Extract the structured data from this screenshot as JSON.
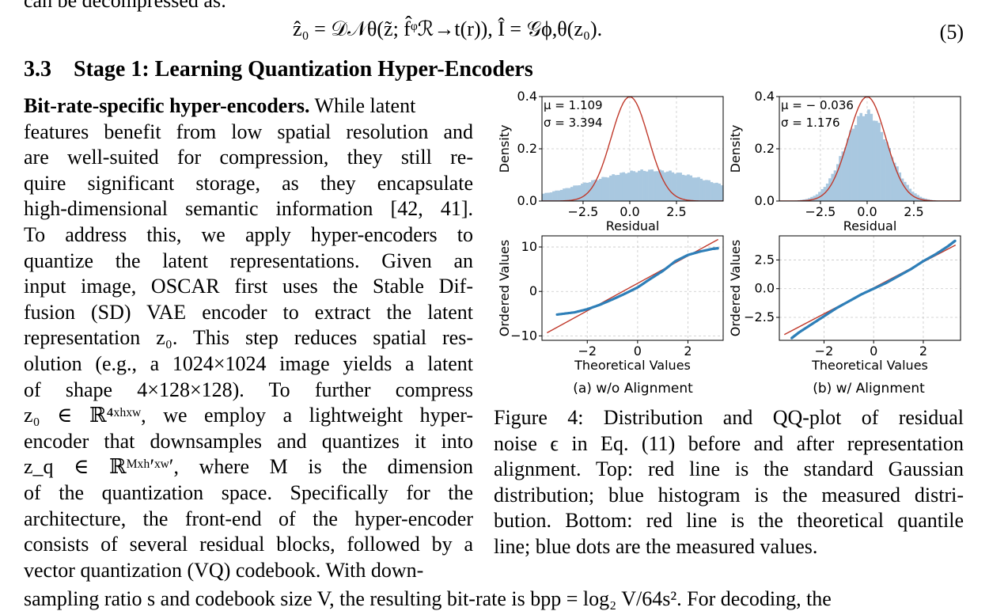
{
  "page": {
    "top_cut_text": "can be decompressed as:",
    "equation": "ẑ₀ = 𝒟𝒩θ(z̃; f̂ᵠℛ→t(r)),    Î = 𝒢ϕ,θ(z₀).",
    "equation_number": "(5)",
    "section_number": "3.3",
    "section_title": "Stage 1: Learning Quantization Hyper-Encoders",
    "para_lead": "Bit-rate-specific hyper-encoders.",
    "body_lines": [
      " While latent",
      "features benefit from low spatial resolution and",
      "are well-suited for compression, they still re-",
      "quire significant storage, as they encapsulate",
      "high-dimensional semantic information [42, 41].",
      "To address this, we apply hyper-encoders to",
      "quantize the latent representations.  Given an",
      "input image, OSCAR first uses the Stable Dif-",
      "fusion (SD) VAE encoder to extract the latent",
      "representation z₀. This step reduces spatial res-",
      "olution (e.g., a 1024×1024 image yields a latent",
      "of shape 4×128×128).  To further compress",
      "z₀ ∈ ℝ⁴ˣʰˣʷ, we employ a lightweight hyper-",
      "encoder that downsamples and quantizes it into",
      "z_q ∈ ℝᴹˣʰ′ˣʷ′, where M is the dimension",
      "of the quantization space. Specifically for the",
      "architecture, the front-end of the hyper-encoder",
      "consists of several residual blocks, followed by a",
      "vector quantization (VQ) codebook. With down-"
    ],
    "bottom_cut_text": "sampling ratio s and codebook size V, the resulting bit-rate is bpp = log₂ V/64s². For decoding, the",
    "caption_lines": [
      "Figure 4:  Distribution and QQ-plot of residual",
      "noise ϵ in Eq. (11) before and after representation",
      "alignment. Top: red line is the standard Gaussian",
      "distribution; blue histogram is the measured distri-",
      "bution. Bottom: red line is the theoretical quantile",
      "line; blue dots are the measured values."
    ]
  },
  "colors": {
    "hist_fill": "#a9c8e0",
    "gauss_line": "#c0392b",
    "qq_dots": "#2e7fb8",
    "grid": "#c8c8c8"
  },
  "chart_data": [
    {
      "type": "area",
      "panel": "a-top",
      "xlabel": "Residual",
      "ylabel": "Density",
      "xticks": [
        "−2.5",
        "0.0",
        "2.5"
      ],
      "yticks": [
        "0.0",
        "0.2",
        "0.4"
      ],
      "xlim": [
        -4.7,
        5.0
      ],
      "ylim": [
        0,
        0.4
      ],
      "annotation_mu": "μ = 1.109",
      "annotation_sigma": "σ = 3.394",
      "histogram": {
        "mu": 1.109,
        "sigma": 3.394
      },
      "reference": "standard Gaussian",
      "subcaption": "(a) w/o Alignment"
    },
    {
      "type": "area",
      "panel": "b-top",
      "xlabel": "Residual",
      "ylabel": "Density",
      "xticks": [
        "−2.5",
        "0.0",
        "2.5"
      ],
      "yticks": [
        "0.0",
        "0.2",
        "0.4"
      ],
      "xlim": [
        -4.7,
        5.0
      ],
      "ylim": [
        0,
        0.4
      ],
      "annotation_mu": "μ = − 0.036",
      "annotation_sigma": "σ = 1.176",
      "histogram": {
        "mu": -0.036,
        "sigma": 1.176
      },
      "reference": "standard Gaussian",
      "subcaption": "(b) w/ Alignment"
    },
    {
      "type": "scatter",
      "panel": "a-bottom",
      "xlabel": "Theoretical Values",
      "ylabel": "Ordered Values",
      "xticks": [
        "−2",
        "0",
        "2"
      ],
      "yticks": [
        "−10",
        "0",
        "10"
      ],
      "xlim": [
        -3.8,
        3.4
      ],
      "ylim": [
        -11,
        12.5
      ],
      "line": {
        "x": [
          -3.6,
          3.2
        ],
        "y": [
          -9.3,
          11.7
        ]
      },
      "points": {
        "x": [
          -3.2,
          -2.5,
          -2.0,
          -1.5,
          -1.0,
          -0.5,
          0.0,
          0.5,
          1.0,
          1.5,
          2.0,
          2.5,
          3.0,
          3.2
        ],
        "y": [
          -5.2,
          -4.7,
          -4.0,
          -3.0,
          -1.8,
          -0.5,
          0.9,
          2.8,
          4.6,
          6.8,
          8.2,
          9.0,
          9.6,
          9.7
        ]
      }
    },
    {
      "type": "scatter",
      "panel": "b-bottom",
      "xlabel": "Theoretical Values",
      "ylabel": "Ordered Values",
      "xticks": [
        "−2",
        "0",
        "2"
      ],
      "yticks": [
        "−2.5",
        "0.0",
        "2.5"
      ],
      "xlim": [
        -3.8,
        3.5
      ],
      "ylim": [
        -4.5,
        4.6
      ],
      "line": {
        "x": [
          -3.6,
          3.3
        ],
        "y": [
          -4.0,
          3.8
        ]
      },
      "points": {
        "x": [
          -3.3,
          -3.0,
          -2.5,
          -2.0,
          -1.5,
          -1.0,
          -0.5,
          0.0,
          0.5,
          1.0,
          1.5,
          2.0,
          2.5,
          3.0,
          3.3
        ],
        "y": [
          -4.3,
          -3.8,
          -3.1,
          -2.4,
          -1.7,
          -1.1,
          -0.5,
          0.0,
          0.5,
          1.1,
          1.7,
          2.4,
          3.0,
          3.7,
          4.2
        ]
      }
    }
  ]
}
